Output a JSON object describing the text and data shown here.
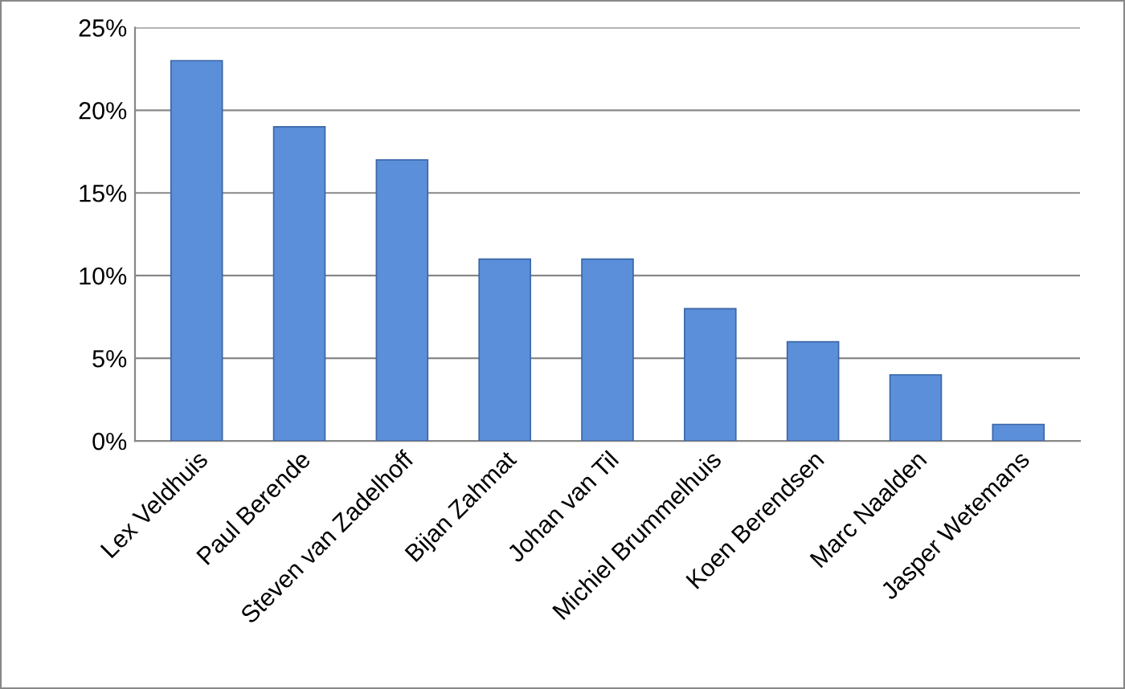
{
  "chart_data": {
    "type": "bar",
    "categories": [
      "Lex Veldhuis",
      "Paul Berende",
      "Steven van Zadelhoff",
      "Bijan Zahmat",
      "Johan van Til",
      "Michiel Brummelhuis",
      "Koen Berendsen",
      "Marc Naalden",
      "Jasper Wetemans"
    ],
    "values": [
      23,
      19,
      17,
      11,
      11,
      8,
      6,
      4,
      1
    ],
    "color": "#5b8fd9",
    "ylim": [
      0,
      25
    ],
    "yticks": [
      {
        "value": 0,
        "label": "0%"
      },
      {
        "value": 5,
        "label": "5%"
      },
      {
        "value": 10,
        "label": "10%"
      },
      {
        "value": 15,
        "label": "15%"
      },
      {
        "value": 20,
        "label": "20%"
      },
      {
        "value": 25,
        "label": "25%"
      }
    ],
    "grid": "y"
  }
}
